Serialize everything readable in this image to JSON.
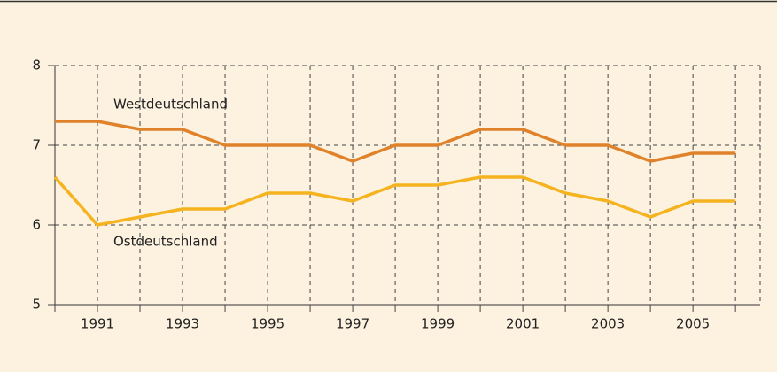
{
  "chart_data": {
    "type": "line",
    "x": [
      1990,
      1991,
      1992,
      1993,
      1994,
      1995,
      1996,
      1997,
      1998,
      1999,
      2000,
      2001,
      2002,
      2003,
      2004,
      2005,
      2006
    ],
    "series": [
      {
        "name": "Westdeutschland",
        "color": "#e0822a",
        "values": [
          7.3,
          7.3,
          7.2,
          7.2,
          7.0,
          7.0,
          7.0,
          6.8,
          7.0,
          7.0,
          7.2,
          7.2,
          7.0,
          7.0,
          6.8,
          6.9,
          6.9
        ]
      },
      {
        "name": "Ostdeutschland",
        "color": "#f5b320",
        "values": [
          6.6,
          6.0,
          6.1,
          6.2,
          6.2,
          6.4,
          6.4,
          6.3,
          6.5,
          6.5,
          6.6,
          6.6,
          6.4,
          6.3,
          6.1,
          6.3,
          6.3
        ]
      }
    ],
    "xlim": [
      1990,
      2006.58
    ],
    "xticks": [
      1991,
      1993,
      1995,
      1997,
      1999,
      2001,
      2003,
      2005
    ],
    "xminorticks": [
      1990,
      1992,
      1994,
      1996,
      1998,
      2000,
      2002,
      2004,
      2006
    ],
    "ylim": [
      5,
      8
    ],
    "yticks": [
      5,
      6,
      7,
      8
    ],
    "grid": true
  }
}
